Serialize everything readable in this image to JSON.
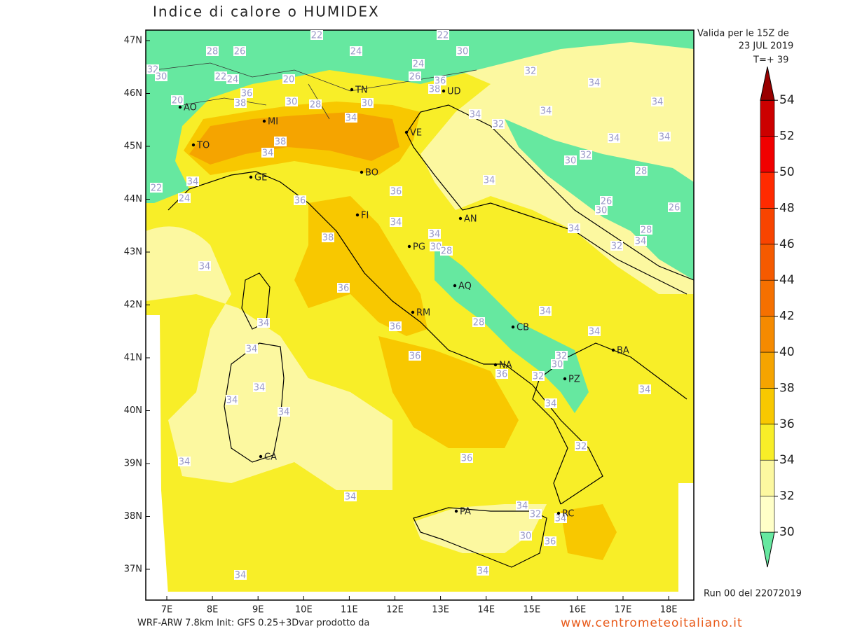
{
  "header": {
    "title": "Indice di calore o HUMIDEX",
    "valid_line": "Valida per le 15Z de",
    "valid_date": "23 JUL 2019",
    "lead_time": "T=+ 39"
  },
  "map": {
    "lat_labels": [
      "47N",
      "46N",
      "45N",
      "44N",
      "43N",
      "42N",
      "41N",
      "40N",
      "39N",
      "38N",
      "37N"
    ],
    "lon_labels": [
      "7E",
      "8E",
      "9E",
      "10E",
      "11E",
      "12E",
      "13E",
      "14E",
      "15E",
      "16E",
      "17E",
      "18E"
    ],
    "cities": [
      "AO",
      "MI",
      "TO",
      "GE",
      "BO",
      "VE",
      "TN",
      "UD",
      "FI",
      "AN",
      "PG",
      "AQ",
      "RM",
      "CB",
      "BA",
      "NA",
      "PZ",
      "CA",
      "PA",
      "RC"
    ],
    "contour_labels": [
      22,
      22,
      28,
      26,
      24,
      30,
      24,
      32,
      30,
      22,
      24,
      20,
      26,
      38,
      36,
      32,
      34,
      34,
      20,
      36,
      38,
      30,
      28,
      30,
      34,
      34,
      34,
      32,
      38,
      34,
      34,
      34,
      32,
      30,
      28,
      34,
      22,
      24,
      36,
      36,
      34,
      26,
      30,
      26,
      34,
      34,
      38,
      28,
      34,
      34,
      32,
      30,
      28,
      34,
      36,
      34,
      34,
      34,
      36,
      28,
      34,
      36,
      32,
      30,
      32,
      36,
      34,
      34,
      34,
      34,
      34,
      32,
      36,
      34,
      34,
      34,
      32,
      34,
      30,
      36,
      34,
      34
    ]
  },
  "colorbar": {
    "levels": [
      30,
      32,
      34,
      36,
      38,
      40,
      42,
      44,
      46,
      48,
      50,
      52,
      54
    ],
    "colors": [
      "#66e8a0",
      "#ffffc8",
      "#fcf8a0",
      "#f8ee28",
      "#f8c800",
      "#f5a400",
      "#f58a00",
      "#f57000",
      "#f55a00",
      "#f84400",
      "#ff2a00",
      "#f00000",
      "#cc0000",
      "#990000"
    ]
  },
  "footer": {
    "run": "Run 00 del 22072019",
    "model": "WRF-ARW 7.8km Init: GFS 0.25+3Dvar prodotto da",
    "site": "www.centrometeoitaliano.it"
  }
}
